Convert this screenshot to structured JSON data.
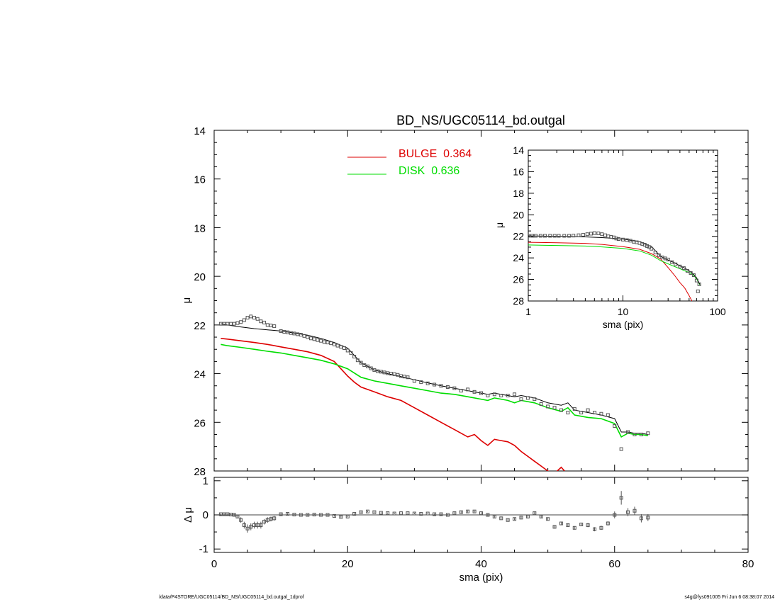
{
  "footer": {
    "left": "/data/P4STORE/UGC05114/BD_NS/UGC05114_bd.outgal_1dprof",
    "right": "s4g@fys091005  Fri Jun  6 08:38:07 2014"
  },
  "colors": {
    "bulge": "#dd0000",
    "disk": "#00dd00",
    "model": "#000000",
    "data": "#555555"
  },
  "chart_data": [
    {
      "id": "main",
      "type": "line",
      "title": "BD_NS/UGC05114_bd.outgal",
      "xlabel": "",
      "ylabel": "μ",
      "xlim": [
        0,
        80
      ],
      "ylim": [
        28,
        14
      ],
      "yticks": [
        "14",
        "16",
        "18",
        "20",
        "22",
        "24",
        "26",
        "28"
      ],
      "legend": [
        {
          "name": "BULGE  0.364",
          "color": "#dd0000"
        },
        {
          "name": "DISK  0.636",
          "color": "#00dd00"
        }
      ],
      "series": [
        {
          "name": "BULGE  0.364",
          "color": "#dd0000",
          "x": [
            1,
            2,
            4,
            6,
            8,
            10,
            12,
            14,
            16,
            18,
            19,
            20,
            21,
            22,
            24,
            26,
            28,
            30,
            32,
            34,
            36,
            38,
            39,
            40,
            41,
            42,
            43,
            44,
            45,
            46,
            47,
            48,
            49,
            50,
            51,
            52,
            52.5
          ],
          "y": [
            22.55,
            22.58,
            22.65,
            22.72,
            22.8,
            22.9,
            23.0,
            23.1,
            23.25,
            23.5,
            23.8,
            24.1,
            24.35,
            24.55,
            24.75,
            24.95,
            25.1,
            25.4,
            25.7,
            26.0,
            26.3,
            26.6,
            26.5,
            26.75,
            26.95,
            26.7,
            26.75,
            26.8,
            26.95,
            27.2,
            27.4,
            27.6,
            27.8,
            28.0,
            28.1,
            27.85,
            28.0
          ]
        },
        {
          "name": "DISK  0.636",
          "color": "#00dd00",
          "x": [
            1,
            2,
            4,
            6,
            8,
            10,
            12,
            14,
            16,
            18,
            20,
            22,
            24,
            26,
            28,
            30,
            32,
            34,
            36,
            38,
            40,
            41,
            42,
            44,
            45,
            46,
            48,
            50,
            52,
            53,
            54,
            56,
            58,
            60,
            61,
            62,
            63,
            64,
            65
          ],
          "y": [
            22.8,
            22.85,
            22.92,
            23.0,
            23.08,
            23.15,
            23.25,
            23.35,
            23.45,
            23.6,
            23.8,
            24.15,
            24.3,
            24.4,
            24.5,
            24.6,
            24.7,
            24.8,
            24.85,
            24.95,
            25.05,
            25.1,
            25.0,
            25.1,
            25.2,
            25.1,
            25.2,
            25.4,
            25.55,
            25.4,
            25.7,
            25.8,
            25.85,
            26.05,
            26.6,
            26.45,
            26.5,
            26.5,
            26.55
          ]
        },
        {
          "name": "model",
          "color": "#000000",
          "x": [
            1,
            2,
            4,
            6,
            8,
            10,
            12,
            14,
            16,
            18,
            20,
            22,
            24,
            26,
            28,
            30,
            32,
            34,
            36,
            38,
            40,
            41,
            42,
            44,
            45,
            46,
            48,
            50,
            52,
            53,
            54,
            56,
            58,
            60,
            61,
            62,
            63,
            64,
            65
          ],
          "y": [
            21.95,
            22.0,
            22.08,
            22.15,
            22.2,
            22.25,
            22.33,
            22.42,
            22.55,
            22.72,
            22.95,
            23.55,
            23.85,
            24.0,
            24.12,
            24.25,
            24.38,
            24.5,
            24.6,
            24.7,
            24.8,
            24.85,
            24.8,
            24.9,
            24.95,
            24.9,
            25.0,
            25.2,
            25.3,
            25.2,
            25.5,
            25.6,
            25.7,
            25.85,
            26.4,
            26.4,
            26.45,
            26.45,
            26.5
          ]
        },
        {
          "name": "data",
          "color": "#555555",
          "marker": "square",
          "x": [
            1,
            1.5,
            2,
            2.5,
            3,
            3.5,
            4,
            4.5,
            5,
            5.5,
            6,
            6.5,
            7,
            7.5,
            8,
            8.5,
            9,
            10,
            10.5,
            11,
            11.5,
            12,
            12.5,
            13,
            13.5,
            14,
            14.5,
            15,
            15.5,
            16,
            16.5,
            17,
            17.5,
            18,
            18.5,
            19,
            19.5,
            20,
            20.5,
            21,
            21.5,
            22,
            22.5,
            23,
            23.5,
            24,
            24.5,
            25,
            25.5,
            26,
            26.5,
            27,
            27.5,
            28,
            28.5,
            29,
            30,
            31,
            32,
            33,
            34,
            35,
            36,
            37,
            38,
            39,
            40,
            41,
            42,
            43,
            44,
            45,
            46,
            47,
            48,
            49,
            50,
            51,
            52,
            53,
            54,
            55,
            56,
            57,
            58,
            59,
            60,
            61,
            62,
            63,
            64,
            65
          ],
          "y": [
            21.95,
            21.95,
            21.95,
            21.95,
            21.95,
            21.92,
            21.88,
            21.8,
            21.7,
            21.65,
            21.7,
            21.75,
            21.85,
            21.9,
            22.0,
            22.02,
            22.05,
            22.25,
            22.28,
            22.3,
            22.33,
            22.35,
            22.38,
            22.4,
            22.45,
            22.5,
            22.55,
            22.58,
            22.62,
            22.65,
            22.7,
            22.72,
            22.75,
            22.8,
            22.85,
            22.9,
            22.95,
            23.05,
            23.15,
            23.3,
            23.45,
            23.55,
            23.65,
            23.7,
            23.78,
            23.85,
            23.9,
            23.92,
            23.95,
            23.98,
            24.0,
            24.02,
            24.05,
            24.1,
            24.12,
            24.15,
            24.3,
            24.35,
            24.4,
            24.45,
            24.5,
            24.55,
            24.6,
            24.7,
            24.65,
            24.75,
            24.8,
            24.9,
            24.85,
            24.9,
            24.9,
            24.85,
            25.05,
            25.0,
            25.05,
            25.25,
            25.35,
            25.4,
            25.5,
            25.6,
            25.45,
            25.6,
            25.5,
            25.6,
            25.65,
            25.7,
            26.15,
            27.1,
            26.4,
            26.5,
            26.5,
            26.45
          ]
        }
      ]
    },
    {
      "id": "residual",
      "type": "scatter",
      "xlabel": "sma (pix)",
      "ylabel": "Δ μ",
      "xlim": [
        0,
        80
      ],
      "ylim": [
        -1.1,
        1.1
      ],
      "xticks": [
        "0",
        "20",
        "40",
        "60",
        "80"
      ],
      "yticks": [
        "1",
        "0",
        "-1"
      ],
      "series": [
        {
          "name": "residual",
          "color": "#555555",
          "marker": "square",
          "x": [
            1,
            1.5,
            2,
            2.5,
            3,
            3.5,
            4,
            4.5,
            5,
            5.5,
            6,
            6.5,
            7,
            7.5,
            8,
            8.5,
            9,
            10,
            11,
            12,
            13,
            14,
            15,
            16,
            17,
            18,
            19,
            20,
            21,
            22,
            23,
            24,
            25,
            26,
            27,
            28,
            29,
            30,
            31,
            32,
            33,
            34,
            35,
            36,
            37,
            38,
            39,
            40,
            41,
            42,
            43,
            44,
            45,
            46,
            47,
            48,
            49,
            50,
            51,
            52,
            53,
            54,
            55,
            56,
            57,
            58,
            59,
            60,
            61,
            62,
            63,
            64,
            65
          ],
          "y": [
            0.02,
            0.02,
            0.02,
            0.01,
            0,
            -0.05,
            -0.15,
            -0.3,
            -0.4,
            -0.35,
            -0.3,
            -0.3,
            -0.3,
            -0.2,
            -0.15,
            -0.12,
            -0.1,
            0.02,
            0.03,
            0.01,
            0.0,
            0.0,
            0.01,
            0.0,
            0.0,
            -0.03,
            -0.06,
            -0.05,
            0.03,
            0.08,
            0.1,
            0.08,
            0.06,
            0.05,
            0.04,
            0.05,
            0.05,
            0.04,
            0.03,
            0.04,
            0.02,
            0.02,
            0.0,
            0.05,
            0.08,
            0.1,
            0.1,
            0.05,
            0.0,
            -0.05,
            -0.1,
            -0.15,
            -0.12,
            -0.08,
            -0.05,
            0.05,
            -0.05,
            -0.12,
            -0.35,
            -0.25,
            -0.3,
            -0.38,
            -0.28,
            -0.3,
            -0.42,
            -0.38,
            -0.25,
            0.0,
            0.5,
            0.08,
            0.12,
            -0.1,
            -0.08
          ],
          "err": [
            0.02,
            0.02,
            0.02,
            0.02,
            0.03,
            0.05,
            0.08,
            0.1,
            0.12,
            0.1,
            0.1,
            0.1,
            0.1,
            0.08,
            0.08,
            0.07,
            0.07,
            0.03,
            0.02,
            0.02,
            0.02,
            0.02,
            0.02,
            0.02,
            0.02,
            0.02,
            0.02,
            0.02,
            0.02,
            0.02,
            0.02,
            0.02,
            0.02,
            0.02,
            0.02,
            0.02,
            0.02,
            0.02,
            0.02,
            0.02,
            0.02,
            0.02,
            0.02,
            0.03,
            0.03,
            0.03,
            0.03,
            0.03,
            0.03,
            0.03,
            0.03,
            0.03,
            0.03,
            0.03,
            0.03,
            0.03,
            0.04,
            0.04,
            0.05,
            0.05,
            0.05,
            0.05,
            0.05,
            0.06,
            0.06,
            0.06,
            0.06,
            0.1,
            0.2,
            0.12,
            0.12,
            0.12,
            0.1
          ]
        }
      ]
    },
    {
      "id": "inset",
      "type": "line",
      "xlabel": "sma (pix)",
      "ylabel": "μ",
      "xscale": "log",
      "xlim": [
        1,
        100
      ],
      "ylim": [
        28,
        14
      ],
      "xticks": [
        "1",
        "10",
        "100"
      ],
      "yticks": [
        "14",
        "16",
        "18",
        "20",
        "22",
        "24",
        "26",
        "28"
      ],
      "series": [
        {
          "name": "BULGE",
          "color": "#dd0000",
          "x": [
            1,
            2,
            4,
            6,
            10,
            15,
            20,
            25,
            30,
            35,
            40,
            45,
            50,
            55
          ],
          "y": [
            22.55,
            22.6,
            22.65,
            22.75,
            22.95,
            23.2,
            23.6,
            24.1,
            24.9,
            25.6,
            26.3,
            26.8,
            27.5,
            28.2
          ]
        },
        {
          "name": "DISK",
          "color": "#00dd00",
          "x": [
            1,
            2,
            4,
            6,
            10,
            15,
            20,
            25,
            30,
            35,
            40,
            45,
            50,
            55,
            60,
            65
          ],
          "y": [
            22.8,
            22.85,
            22.9,
            22.98,
            23.12,
            23.35,
            23.75,
            24.25,
            24.55,
            24.8,
            25.0,
            25.2,
            25.35,
            25.55,
            25.95,
            26.5
          ]
        },
        {
          "name": "model",
          "color": "#000000",
          "x": [
            1,
            2,
            4,
            6,
            10,
            15,
            20,
            25,
            30,
            35,
            40,
            45,
            50,
            55,
            60,
            65
          ],
          "y": [
            21.95,
            22.0,
            22.05,
            22.12,
            22.25,
            22.5,
            22.95,
            23.85,
            24.2,
            24.45,
            24.75,
            24.95,
            25.2,
            25.45,
            25.85,
            26.45
          ]
        },
        {
          "name": "data",
          "color": "#555555",
          "marker": "square",
          "x": [
            1.0,
            1.1,
            1.2,
            1.35,
            1.5,
            1.7,
            1.9,
            2.1,
            2.4,
            2.7,
            3.0,
            3.4,
            3.8,
            4.2,
            4.6,
            5.0,
            5.5,
            6.0,
            6.5,
            7.0,
            7.5,
            8.0,
            8.5,
            9.0,
            10,
            11,
            12,
            13,
            14,
            15,
            16,
            17,
            18,
            19,
            20,
            22,
            24,
            26,
            28,
            30,
            33,
            36,
            40,
            44,
            48,
            52,
            56,
            60,
            62,
            64
          ],
          "y": [
            21.95,
            21.95,
            21.95,
            21.95,
            21.95,
            21.95,
            21.95,
            21.95,
            21.95,
            21.95,
            21.93,
            21.9,
            21.85,
            21.8,
            21.75,
            21.7,
            21.72,
            21.8,
            21.9,
            22.0,
            22.05,
            22.1,
            22.2,
            22.25,
            22.3,
            22.35,
            22.4,
            22.5,
            22.55,
            22.62,
            22.7,
            22.78,
            22.9,
            23.0,
            23.15,
            23.5,
            23.75,
            23.95,
            24.05,
            24.15,
            24.4,
            24.6,
            24.8,
            24.95,
            25.2,
            25.4,
            25.6,
            26.1,
            27.1,
            26.45
          ]
        }
      ]
    }
  ]
}
